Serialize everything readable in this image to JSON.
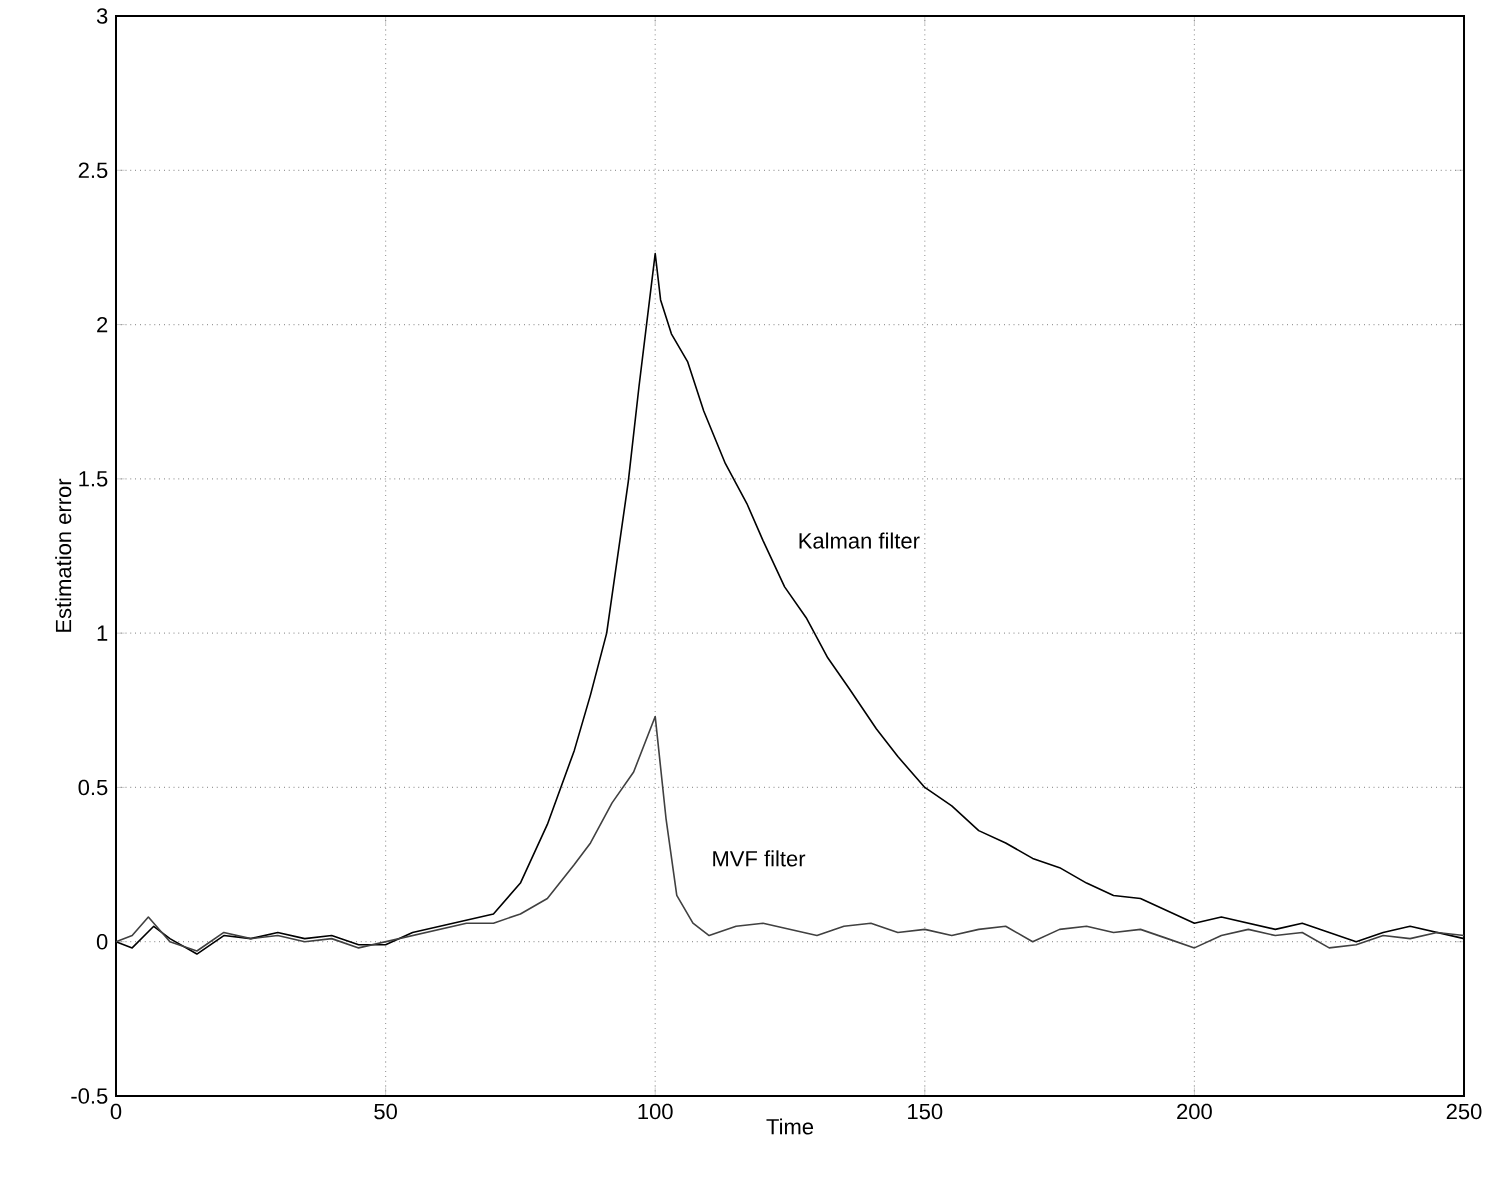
{
  "chart_data": {
    "type": "line",
    "xlabel": "Time",
    "ylabel": "Estimation error",
    "xlim": [
      0,
      250
    ],
    "ylim": [
      -0.5,
      3
    ],
    "xticks": [
      0,
      50,
      100,
      150,
      200,
      250
    ],
    "yticks": [
      -0.5,
      0,
      0.5,
      1,
      1.5,
      2,
      2.5,
      3
    ],
    "grid": true,
    "line_style": "solid",
    "series": [
      {
        "name": "Kalman filter",
        "color": "#000000",
        "x": [
          0,
          3,
          7,
          10,
          15,
          20,
          25,
          30,
          35,
          40,
          45,
          50,
          55,
          60,
          65,
          70,
          75,
          80,
          85,
          88,
          91,
          95,
          97,
          100,
          101,
          103,
          106,
          109,
          113,
          117,
          120,
          124,
          128,
          132,
          136,
          141,
          145,
          150,
          155,
          160,
          165,
          170,
          175,
          180,
          185,
          190,
          195,
          200,
          205,
          210,
          215,
          220,
          225,
          230,
          235,
          240,
          245,
          250
        ],
        "values": [
          0,
          -0.02,
          0.05,
          0.01,
          -0.04,
          0.02,
          0.01,
          0.03,
          0.01,
          0.02,
          -0.01,
          -0.01,
          0.03,
          0.05,
          0.07,
          0.09,
          0.19,
          0.38,
          0.62,
          0.8,
          1.0,
          1.49,
          1.8,
          2.23,
          2.08,
          1.97,
          1.88,
          1.72,
          1.55,
          1.42,
          1.3,
          1.15,
          1.05,
          0.92,
          0.82,
          0.69,
          0.6,
          0.5,
          0.44,
          0.36,
          0.32,
          0.27,
          0.24,
          0.19,
          0.15,
          0.14,
          0.1,
          0.06,
          0.08,
          0.06,
          0.04,
          0.06,
          0.03,
          0.0,
          0.03,
          0.05,
          0.03,
          0.01
        ]
      },
      {
        "name": "MVF filter",
        "color": "#404040",
        "x": [
          0,
          3,
          6,
          10,
          15,
          20,
          25,
          30,
          35,
          40,
          45,
          50,
          55,
          60,
          65,
          70,
          75,
          80,
          85,
          88,
          92,
          96,
          100,
          102,
          104,
          107,
          110,
          115,
          120,
          125,
          130,
          135,
          140,
          145,
          150,
          155,
          160,
          165,
          170,
          175,
          180,
          185,
          190,
          195,
          200,
          205,
          210,
          215,
          220,
          225,
          230,
          235,
          240,
          245,
          250
        ],
        "values": [
          0,
          0.02,
          0.08,
          0.0,
          -0.03,
          0.03,
          0.01,
          0.02,
          0.0,
          0.01,
          -0.02,
          0.0,
          0.02,
          0.04,
          0.06,
          0.06,
          0.09,
          0.14,
          0.25,
          0.32,
          0.45,
          0.55,
          0.73,
          0.4,
          0.15,
          0.06,
          0.02,
          0.05,
          0.06,
          0.04,
          0.02,
          0.05,
          0.06,
          0.03,
          0.04,
          0.02,
          0.04,
          0.05,
          0.0,
          0.04,
          0.05,
          0.03,
          0.04,
          0.01,
          -0.02,
          0.02,
          0.04,
          0.02,
          0.03,
          -0.02,
          -0.01,
          0.02,
          0.01,
          0.03,
          0.02
        ]
      }
    ]
  }
}
